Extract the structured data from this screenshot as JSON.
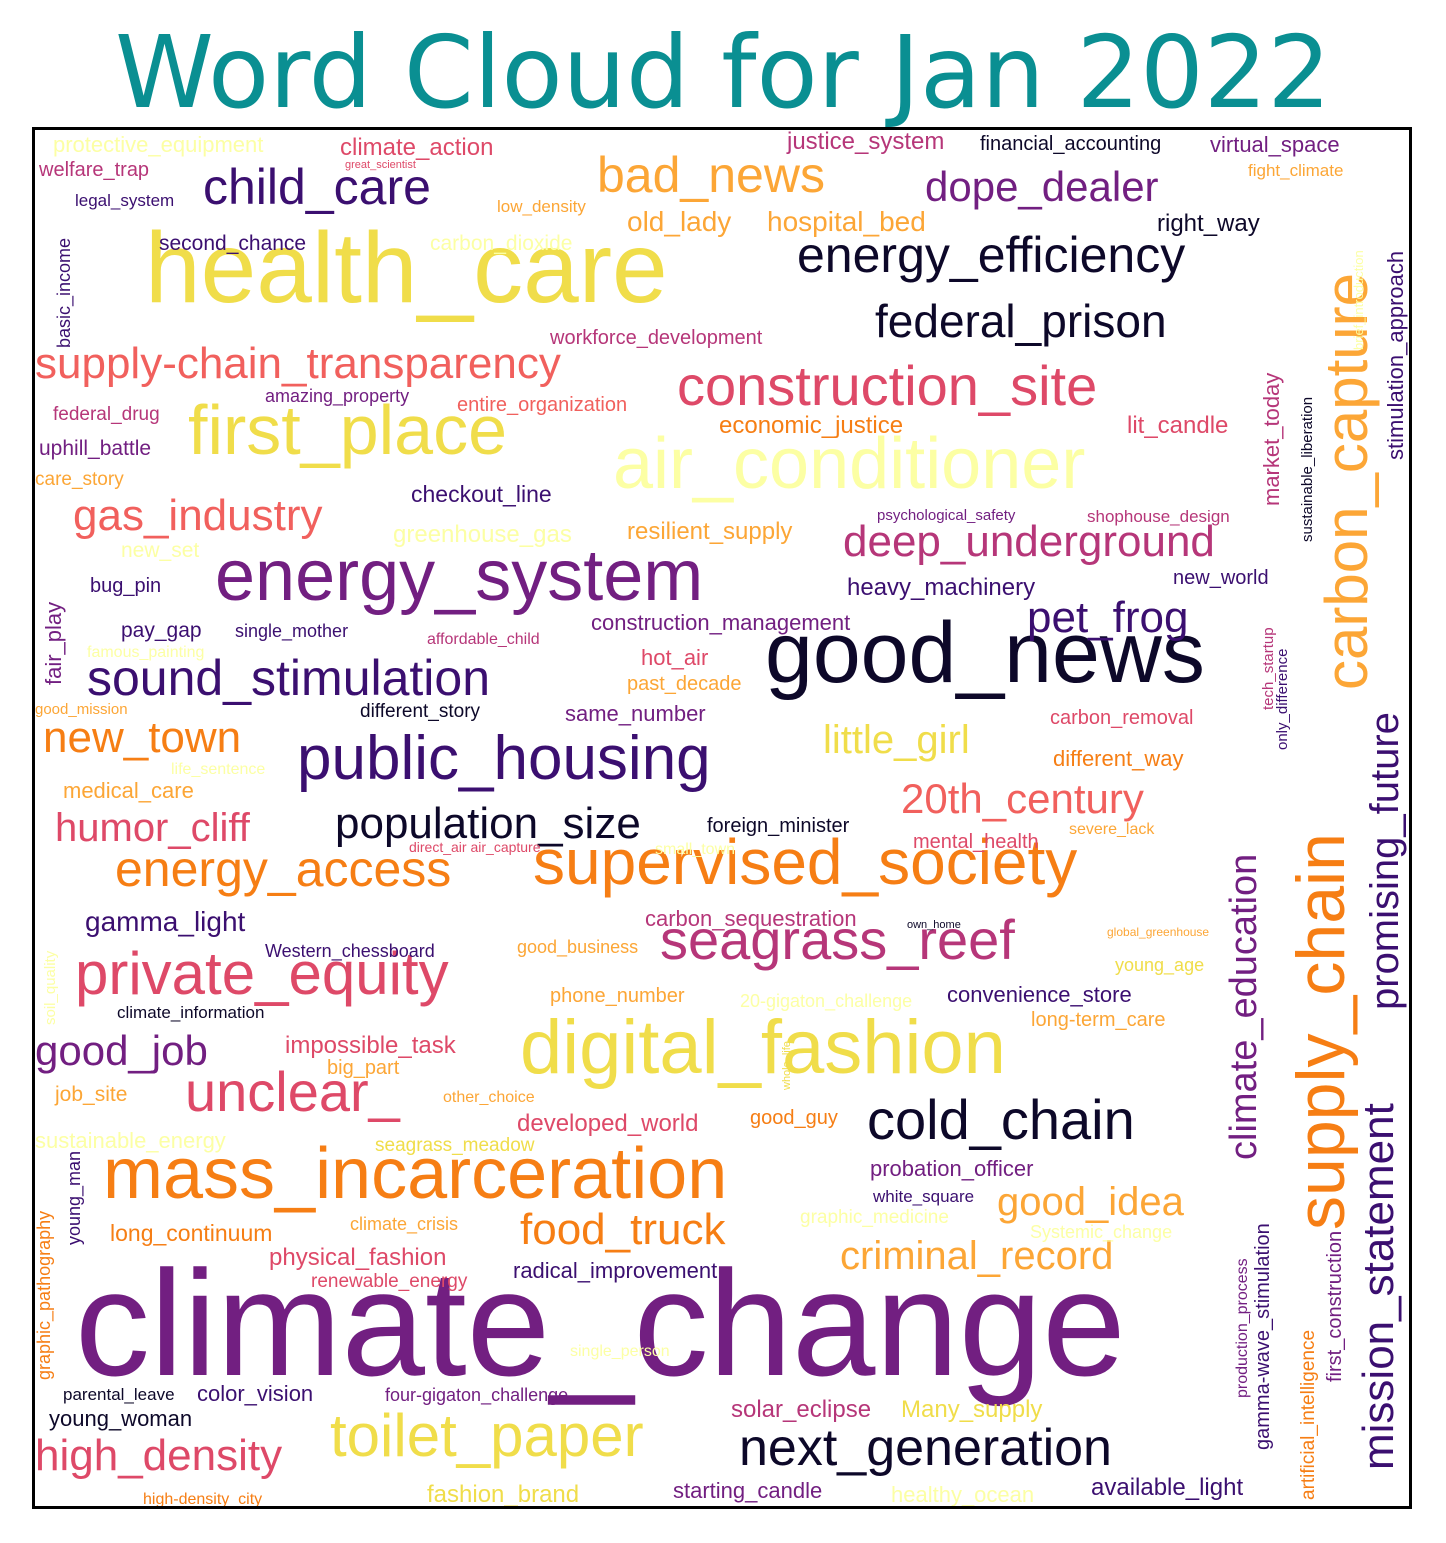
{
  "title": "Word Cloud for Jan 2022",
  "colors": {
    "title": "#0a8f92",
    "frame": "#000000",
    "background": "#ffffff",
    "palette": [
      "#0d0829",
      "#3b0f70",
      "#721f81",
      "#b63679",
      "#de4968",
      "#f1605d",
      "#f67e14",
      "#fca636",
      "#f0dd4a",
      "#fcffa4"
    ]
  },
  "words": [
    "climate_change",
    "health_care",
    "good_news",
    "air_conditioner",
    "first_place",
    "energy_system",
    "digital_fashion",
    "supervised_society",
    "mass_incarceration",
    "supply_chain",
    "carbon_capture",
    "construction_site",
    "public_housing",
    "private_equity",
    "seagrass_reef",
    "toilet_paper",
    "energy_efficiency",
    "child_care",
    "bad_news",
    "dope_dealer",
    "federal_prison",
    "supply-chain_transparency",
    "sound_stimulation",
    "cold_chain",
    "next_generation",
    "unclear_",
    "energy_access",
    "deep_underground",
    "gas_industry",
    "pet_frog",
    "promising_future",
    "mission_statement",
    "climate_education",
    "population_size",
    "20th_century",
    "new_town",
    "humor_cliff",
    "little_girl",
    "good_job",
    "high_density",
    "food_truck",
    "criminal_record",
    "good_idea",
    "old_lady",
    "hospital_bed",
    "protective_equipment",
    "climate_action",
    "justice_system",
    "financial_accounting",
    "virtual_space",
    "welfare_trap",
    "great_scientist",
    "fight_climate",
    "legal_system",
    "low_density",
    "right_way",
    "second_chance",
    "carbon_dioxide",
    "basic_income",
    "workforce_development",
    "brief_introduction",
    "stimulation_approach",
    "sustainable_liberation",
    "market_today",
    "federal_drug",
    "amazing_property",
    "entire_organization",
    "economic_justice",
    "lit_candle",
    "uphill_battle",
    "care_story",
    "checkout_line",
    "psychological_safety",
    "shophouse_design",
    "greenhouse_gas",
    "resilient_supply",
    "new_set",
    "bug_pin",
    "heavy_machinery",
    "new_world",
    "fair_play",
    "pay_gap",
    "single_mother",
    "affordable_child",
    "construction_management",
    "famous_painting",
    "hot_air",
    "past_decade",
    "tech_startup",
    "only_difference",
    "good_mission",
    "different_story",
    "same_number",
    "carbon_removal",
    "life_sentence",
    "different_way",
    "medical_care",
    "foreign_minister",
    "direct_air air_capture",
    "small_town",
    "mental_health",
    "severe_lack",
    "gamma_light",
    "carbon_sequestration",
    "own_home",
    "global_greenhouse",
    "Western_chessboard",
    "good_business",
    "young_age",
    "soil_quality",
    "phone_number",
    "20-gigaton_challenge",
    "convenience_store",
    "climate_information",
    "long-term_care",
    "impossible_task",
    "whole_life",
    "big_part",
    "job_site",
    "other_choice",
    "developed_world",
    "good_guy",
    "sustainable_energy",
    "seagrass_meadow",
    "gamma-wave_stimulation",
    "probation_officer",
    "graphic_pathography",
    "young_man",
    "white_square",
    "long_continuum",
    "climate_crisis",
    "graphic_medicine",
    "Systemic_change",
    "physical_fashion",
    "radical_improvement",
    "renewable_energy",
    "production_process",
    "artificial_intelligence",
    "first_construction",
    "single_person",
    "parental_leave",
    "color_vision",
    "four-gigaton_challenge",
    "young_woman",
    "solar_eclipse",
    "Many_supply",
    "fashion_brand",
    "starting_candle",
    "healthy_ocean",
    "available_light",
    "high-density_city"
  ]
}
